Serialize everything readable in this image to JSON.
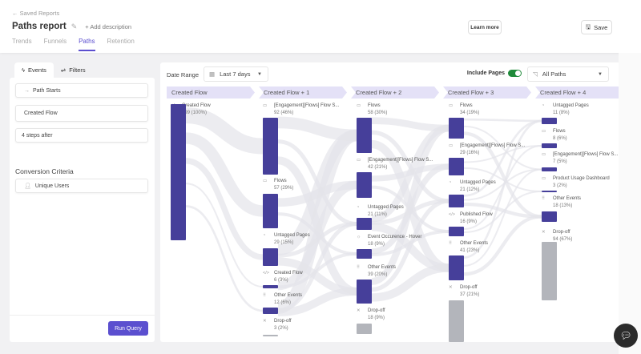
{
  "header": {
    "back_label": "Saved Reports",
    "title": "Paths report",
    "add_description": "+ Add description",
    "learn_more": "Learn more",
    "save": "Save",
    "tabs": [
      {
        "label": "Trends"
      },
      {
        "label": "Funnels"
      },
      {
        "label": "Paths"
      },
      {
        "label": "Retention"
      }
    ],
    "active_tab": "Paths"
  },
  "left": {
    "tabs": [
      {
        "label": "Events",
        "icon": "bolt-icon"
      },
      {
        "label": "Filters",
        "icon": "sliders-icon"
      }
    ],
    "path_starts": "Path Starts",
    "event": "Created Flow",
    "steps": "4 steps after",
    "conversion_title": "Conversion Criteria",
    "conversion_value": "Unique Users",
    "run": "Run Query"
  },
  "controls": {
    "date_range_label": "Date Range",
    "date_range_value": "Last 7 days",
    "include_pages_label": "Include Pages",
    "include_pages_on": true,
    "paths_value": "All Paths"
  },
  "colors": {
    "accent": "#5b4fcf",
    "node": "#463f9a",
    "dropoff": "#b3b5bb",
    "toggle_on": "#1f8a3a"
  },
  "columns": [
    {
      "header": "Created Flow",
      "nodes": [
        {
          "icon": "code-icon",
          "label": "Created Flow",
          "count": "199 (100%)"
        }
      ]
    },
    {
      "header": "Created Flow + 1",
      "nodes": [
        {
          "icon": "page-icon",
          "label": "[Engagement][Flows] Flow S...",
          "count": "92 (46%)"
        },
        {
          "icon": "page-icon",
          "label": "Flows",
          "count": "57 (29%)"
        },
        {
          "icon": "untagged-icon",
          "label": "Untagged Pages",
          "count": "29 (15%)"
        },
        {
          "icon": "code-icon",
          "label": "Created Flow",
          "count": "6 (3%)"
        },
        {
          "icon": "grid-icon",
          "label": "Other Events",
          "count": "12 (6%)"
        },
        {
          "icon": "x-icon",
          "label": "Drop-off",
          "count": "3 (2%)"
        }
      ]
    },
    {
      "header": "Created Flow + 2",
      "nodes": [
        {
          "icon": "page-icon",
          "label": "Flows",
          "count": "58 (30%)"
        },
        {
          "icon": "page-icon",
          "label": "[Engagement][Flows] Flow S...",
          "count": "42 (21%)"
        },
        {
          "icon": "untagged-icon",
          "label": "Untagged Pages",
          "count": "21 (11%)"
        },
        {
          "icon": "hover-icon",
          "label": "Event Occurence - Hover",
          "count": "18 (9%)"
        },
        {
          "icon": "grid-icon",
          "label": "Other Events",
          "count": "39 (20%)"
        },
        {
          "icon": "x-icon",
          "label": "Drop-off",
          "count": "18 (9%)"
        }
      ]
    },
    {
      "header": "Created Flow + 3",
      "nodes": [
        {
          "icon": "page-icon",
          "label": "Flows",
          "count": "34 (19%)"
        },
        {
          "icon": "page-icon",
          "label": "[Engagement][Flows] Flow S...",
          "count": "29 (16%)"
        },
        {
          "icon": "untagged-icon",
          "label": "Untagged Pages",
          "count": "21 (12%)"
        },
        {
          "icon": "code-icon",
          "label": "Published Flow",
          "count": "16 (9%)"
        },
        {
          "icon": "grid-icon",
          "label": "Other Events",
          "count": "41 (23%)"
        },
        {
          "icon": "x-icon",
          "label": "Drop-off",
          "count": "37 (21%)"
        }
      ]
    },
    {
      "header": "Created Flow + 4",
      "nodes": [
        {
          "icon": "untagged-icon",
          "label": "Untagged Pages",
          "count": "11 (8%)"
        },
        {
          "icon": "page-icon",
          "label": "Flows",
          "count": "8 (6%)"
        },
        {
          "icon": "page-icon",
          "label": "[Engagement][Flows] Flow S...",
          "count": "7 (5%)"
        },
        {
          "icon": "page-icon",
          "label": "Product Usage Dashboard",
          "count": "3 (2%)"
        },
        {
          "icon": "grid-icon",
          "label": "Other Events",
          "count": "18 (13%)"
        },
        {
          "icon": "x-icon",
          "label": "Drop-off",
          "count": "94 (67%)"
        }
      ]
    }
  ]
}
